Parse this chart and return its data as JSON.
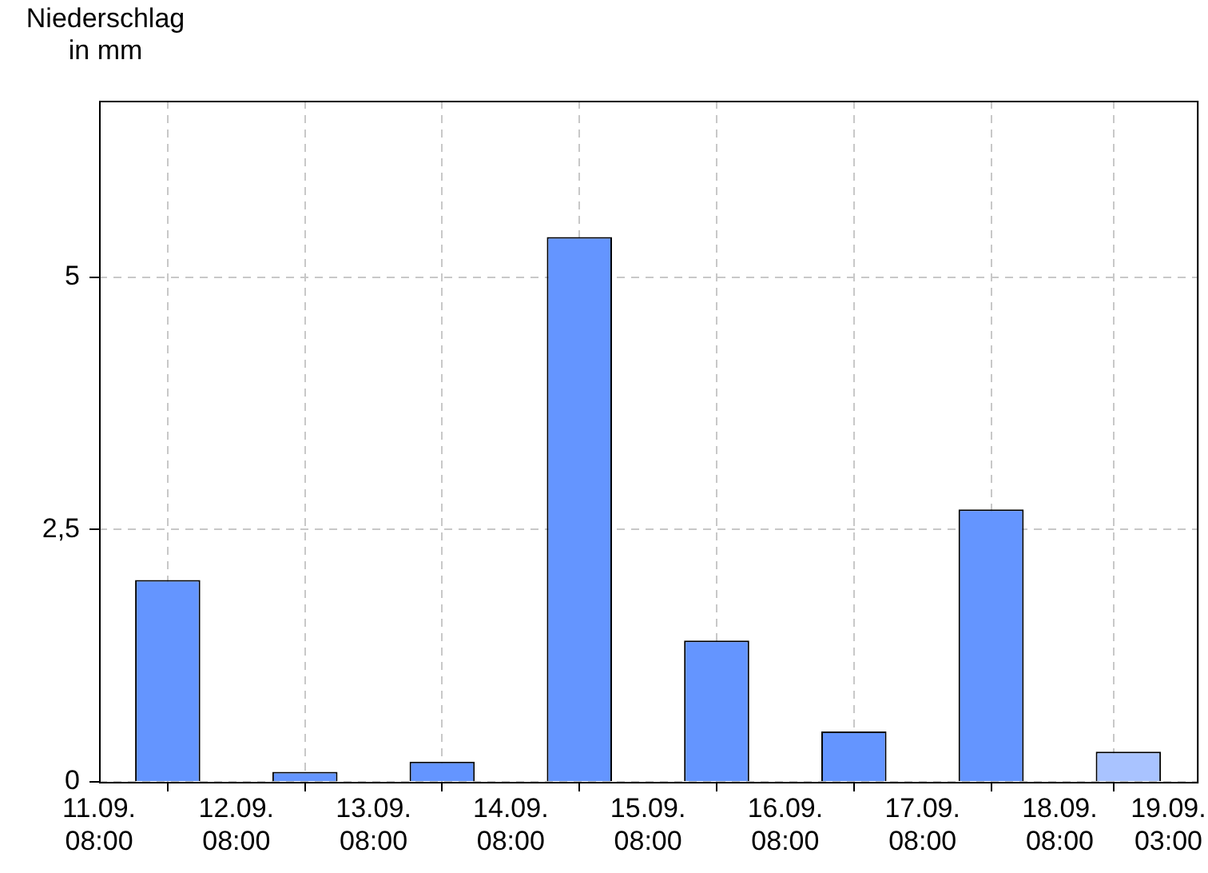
{
  "chart_data": {
    "type": "bar",
    "ylabel": "Niederschlag\nin mm",
    "x": [
      "--09-11T20:00",
      "--09-12T20:00",
      "--09-13T20:00",
      "--09-14T20:00",
      "--09-15T20:00",
      "--09-16T20:00",
      "--09-17T20:00",
      "--09-18T20:00"
    ],
    "values": [
      2.0,
      0.1,
      0.2,
      5.4,
      1.4,
      0.5,
      2.7,
      0.3
    ],
    "colors": [
      "#6495ff",
      "#6495ff",
      "#6495ff",
      "#6495ff",
      "#6495ff",
      "#6495ff",
      "#6495ff",
      "#a9c3ff"
    ],
    "xlim": [
      "--09-11T08:00",
      "--09-19T08:00"
    ],
    "xticks": [
      {
        "value": "--09-11T08:00",
        "label": "11.09.\n08:00"
      },
      {
        "value": "--09-12T08:00",
        "label": "12.09.\n08:00"
      },
      {
        "value": "--09-13T08:00",
        "label": "13.09.\n08:00"
      },
      {
        "value": "--09-14T08:00",
        "label": "14.09.\n08:00"
      },
      {
        "value": "--09-15T08:00",
        "label": "15.09.\n08:00"
      },
      {
        "value": "--09-16T08:00",
        "label": "16.09.\n08:00"
      },
      {
        "value": "--09-17T08:00",
        "label": "17.09.\n08:00"
      },
      {
        "value": "--09-18T08:00",
        "label": "18.09.\n08:00"
      },
      {
        "value": "--09-19T03:00",
        "label": "19.09.\n03:00"
      }
    ],
    "ylim": [
      0,
      6.75
    ],
    "yticks": [
      0,
      {
        "value": 2.5,
        "label": "2,5"
      },
      5
    ],
    "grid": true
  }
}
